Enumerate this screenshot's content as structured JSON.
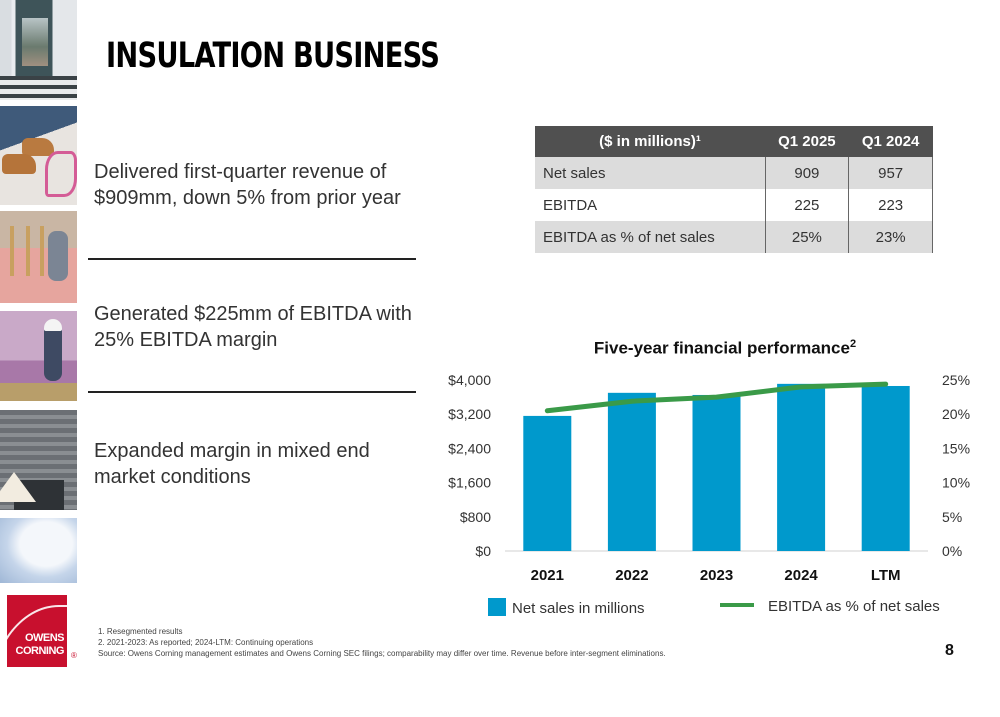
{
  "slide": {
    "title": "INSULATION BUSINESS",
    "page_number": "8",
    "images": [
      "house-entrance-photo",
      "installer-boots-photo",
      "attic-insulation-photo",
      "foam-board-worker-photo",
      "roof-shingles-photo",
      "foam-insulation-photo"
    ]
  },
  "bullets": [
    {
      "text": "Delivered first-quarter revenue of $909mm, down 5% from prior year"
    },
    {
      "text": "Generated $225mm of EBITDA with 25% EBITDA margin"
    },
    {
      "text": "Expanded margin in mixed end market conditions"
    }
  ],
  "table": {
    "headers": [
      "($ in millions)¹",
      "Q1 2025",
      "Q1 2024"
    ],
    "rows": [
      {
        "label": "Net sales",
        "q1_2025": "909",
        "q1_2024": "957"
      },
      {
        "label": "EBITDA",
        "q1_2025": "225",
        "q1_2024": "223"
      },
      {
        "label": "EBITDA as % of net sales",
        "q1_2025": "25%",
        "q1_2024": "23%"
      }
    ]
  },
  "chart_data": {
    "type": "bar",
    "title": "Five-year financial performance",
    "title_superscript": "2",
    "categories": [
      "2021",
      "2022",
      "2023",
      "2024",
      "LTM"
    ],
    "series": [
      {
        "name": "Net sales in millions",
        "type": "bar",
        "axis": "left",
        "color": "#0099cc",
        "values": [
          3160,
          3700,
          3650,
          3910,
          3860
        ]
      },
      {
        "name": "EBITDA as % of net sales",
        "type": "line",
        "axis": "right",
        "color": "#3a9a48",
        "values": [
          20.5,
          21.9,
          22.5,
          24.0,
          24.4
        ]
      }
    ],
    "y_left": {
      "ticks": [
        "$0",
        "$800",
        "$1,600",
        "$2,400",
        "$3,200",
        "$4,000"
      ],
      "range": [
        0,
        4000
      ]
    },
    "y_right": {
      "ticks": [
        "0%",
        "5%",
        "10%",
        "15%",
        "20%",
        "25%"
      ],
      "range": [
        0,
        25
      ]
    },
    "grid": false,
    "legend": "bottom"
  },
  "footnotes": [
    "1. Resegmented results",
    "2. 2021-2023: As reported; 2024-LTM: Continuing operations",
    "Source: Owens Corning management estimates and Owens Corning SEC filings; comparability may differ over time. Revenue before inter-segment eliminations."
  ],
  "logo": {
    "line1": "OWENS",
    "line2": "CORNING",
    "mark": "®",
    "color": "#c8102e"
  }
}
